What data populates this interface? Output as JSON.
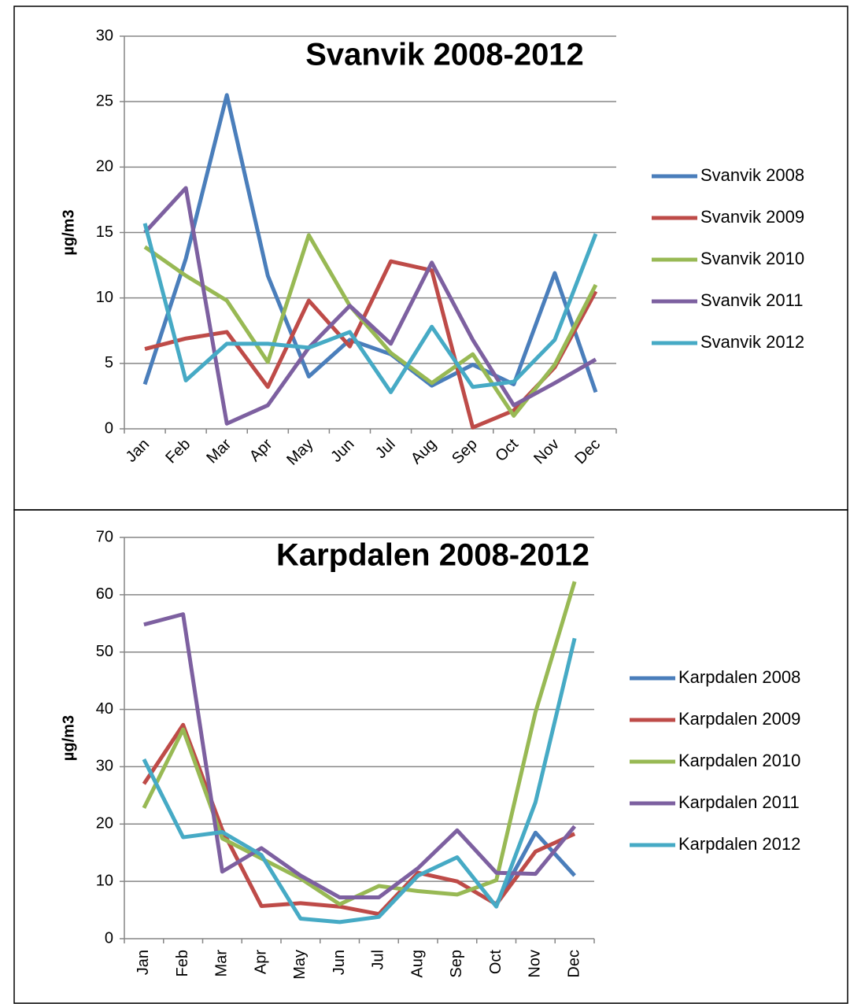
{
  "chart_data": [
    {
      "type": "line",
      "title": "Svanvik 2008-2012",
      "y_label": "µg/m3",
      "categories": [
        "Jan",
        "Feb",
        "Mar",
        "Apr",
        "May",
        "Jun",
        "Jul",
        "Aug",
        "Sep",
        "Oct",
        "Nov",
        "Dec"
      ],
      "ylim": [
        0,
        30
      ],
      "yticks": [
        0,
        5,
        10,
        15,
        20,
        25,
        30
      ],
      "grid": true,
      "series": [
        {
          "name": "Svanvik 2008",
          "color": "#4a7ebb",
          "values": [
            3.4,
            13,
            25.5,
            11.7,
            4,
            6.8,
            5.7,
            3.3,
            4.9,
            3.4,
            11.9,
            2.8
          ]
        },
        {
          "name": "Svanvik 2009",
          "color": "#be4b48",
          "values": [
            6.1,
            6.9,
            7.4,
            3.2,
            9.8,
            6.3,
            12.8,
            12.1,
            0.1,
            1.4,
            4.7,
            10.5
          ]
        },
        {
          "name": "Svanvik 2010",
          "color": "#98b954",
          "values": [
            13.9,
            11.7,
            9.8,
            5.1,
            14.8,
            9.4,
            5.8,
            3.5,
            5.7,
            1.0,
            4.9,
            11.0
          ]
        },
        {
          "name": "Svanvik 2011",
          "color": "#7d60a0",
          "values": [
            15.0,
            18.4,
            0.4,
            1.8,
            6.2,
            9.4,
            6.5,
            12.7,
            6.8,
            1.8,
            3.5,
            5.3
          ]
        },
        {
          "name": "Svanvik 2012",
          "color": "#46aac5",
          "values": [
            15.7,
            3.7,
            6.5,
            6.5,
            6.2,
            7.4,
            2.8,
            7.8,
            3.2,
            3.6,
            6.8,
            14.9
          ]
        }
      ]
    },
    {
      "type": "line",
      "title": "Karpdalen 2008-2012",
      "y_label": "µg/m3",
      "categories": [
        "Jan",
        "Feb",
        "Mar",
        "Apr",
        "May",
        "Jun",
        "Jul",
        "Aug",
        "Sep",
        "Oct",
        "Nov",
        "Dec"
      ],
      "ylim": [
        0,
        70
      ],
      "yticks": [
        0,
        10,
        20,
        30,
        40,
        50,
        60,
        70
      ],
      "grid": true,
      "series": [
        {
          "name": "Karpdalen 2008",
          "color": "#4a7ebb",
          "values": [
            null,
            null,
            null,
            null,
            null,
            null,
            null,
            null,
            null,
            6,
            18.5,
            11
          ]
        },
        {
          "name": "Karpdalen 2009",
          "color": "#be4b48",
          "values": [
            27,
            37.3,
            19,
            5.7,
            6.2,
            5.6,
            4.3,
            11.5,
            10.0,
            6.0,
            15.2,
            18.3
          ]
        },
        {
          "name": "Karpdalen 2010",
          "color": "#98b954",
          "values": [
            22.8,
            36.5,
            17.5,
            14,
            10.5,
            6,
            9.2,
            8.3,
            7.7,
            10.2,
            39.5,
            62.3
          ]
        },
        {
          "name": "Karpdalen 2011",
          "color": "#7d60a0",
          "values": [
            54.8,
            56.6,
            11.7,
            15.8,
            11,
            7.2,
            7.2,
            12.3,
            18.9,
            11.5,
            11.3,
            19.6
          ]
        },
        {
          "name": "Karpdalen 2012",
          "color": "#46aac5",
          "values": [
            31.3,
            17.7,
            18.6,
            14.6,
            3.5,
            2.9,
            3.8,
            11.0,
            14.2,
            5.6,
            23.8,
            52.4
          ]
        }
      ]
    }
  ]
}
